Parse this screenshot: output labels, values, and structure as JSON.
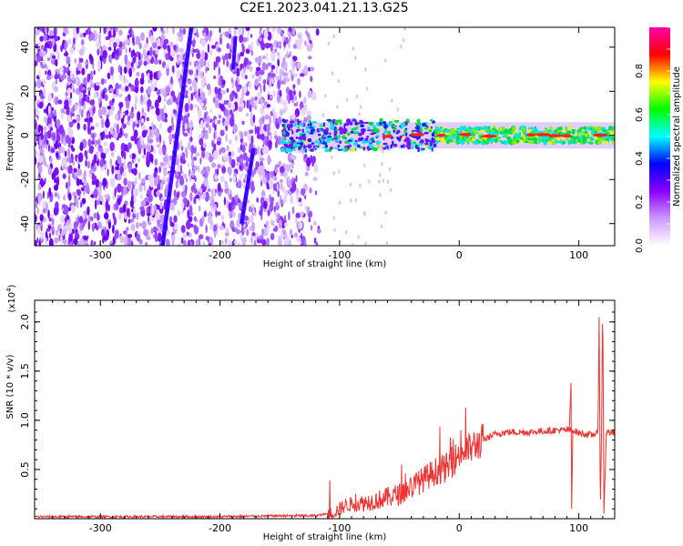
{
  "title": "C2E1.2023.041.21.13.G25",
  "chart_data": [
    {
      "type": "heatmap",
      "xlabel": "Height of straight line (km)",
      "ylabel": "Frequency (Hz)",
      "xlim": [
        -355,
        130
      ],
      "ylim": [
        -50,
        49
      ],
      "xticks": [
        -300,
        -200,
        -100,
        0,
        100
      ],
      "yticks": [
        -40,
        -20,
        0,
        20,
        40
      ],
      "colorbar": {
        "label": "Normalized spectral amplitude",
        "range": [
          0.0,
          1.0
        ],
        "ticks": [
          0.0,
          0.2,
          0.4,
          0.6,
          0.8
        ],
        "colors": [
          "#ffffff",
          "#cc99ff",
          "#8800ff",
          "#0000ff",
          "#00ffff",
          "#00ff00",
          "#ffff00",
          "#ff0000",
          "#ff00aa"
        ]
      },
      "features": {
        "noise_region_x": [
          -355,
          -115
        ],
        "central_band_x": [
          -145,
          130
        ],
        "central_band_freq": 0,
        "streak_1": [
          [
            -248,
            -50
          ],
          [
            -224,
            49
          ]
        ],
        "streak_2": [
          [
            -182,
            -40
          ],
          [
            -172,
            -6
          ]
        ],
        "streak_3": [
          [
            -189,
            30
          ],
          [
            -187,
            45
          ]
        ]
      }
    },
    {
      "type": "line",
      "xlabel": "Height of straight line (km)",
      "ylabel": "SNR (10 * v/v)",
      "yscale_label": "(x10^4)",
      "xlim": [
        -355,
        130
      ],
      "ylim": [
        0.0,
        2.22
      ],
      "xticks": [
        -300,
        -200,
        -100,
        0,
        100
      ],
      "yticks": [
        0.5,
        1.0,
        1.5,
        2.0
      ],
      "color": "#ee3333",
      "series": [
        {
          "x": [
            -355,
            -300,
            -250,
            -200,
            -150,
            -120,
            -105,
            -95,
            -80,
            -65,
            -50,
            -40,
            -30,
            -20,
            -10,
            -5,
            0,
            10,
            20,
            30,
            40,
            50,
            60,
            70,
            80,
            90,
            95,
            100,
            110,
            116,
            117,
            118,
            119,
            120,
            121,
            123,
            130
          ],
          "values": [
            0.02,
            0.02,
            0.02,
            0.02,
            0.03,
            0.03,
            0.06,
            0.14,
            0.16,
            0.2,
            0.25,
            0.32,
            0.4,
            0.48,
            0.52,
            0.58,
            0.66,
            0.72,
            0.8,
            0.86,
            0.88,
            0.88,
            0.88,
            0.89,
            0.9,
            0.9,
            0.9,
            0.87,
            0.85,
            0.87,
            2.05,
            0.02,
            0.9,
            2.25,
            0.05,
            0.88,
            0.87
          ]
        }
      ]
    }
  ]
}
